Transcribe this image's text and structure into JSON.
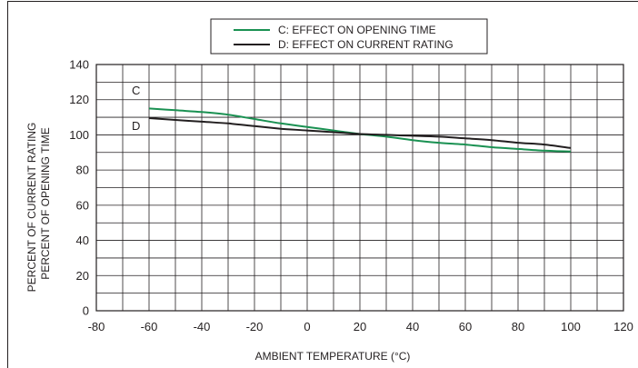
{
  "chart_data": {
    "type": "line",
    "xlabel": "AMBIENT TEMPERATURE (°C)",
    "ylabel_lines": [
      "PERCENT OF CURRENT RATING",
      "PERCENT OF OPENING TIME"
    ],
    "xlim": [
      -80,
      120
    ],
    "ylim": [
      0,
      140
    ],
    "x_ticks": [
      -80,
      -60,
      -40,
      -20,
      0,
      20,
      40,
      60,
      80,
      100,
      120
    ],
    "y_ticks": [
      0,
      20,
      40,
      60,
      80,
      100,
      120,
      140
    ],
    "grid": true,
    "grid_x_step": 10,
    "grid_y_step": 10,
    "legend_placement": "top-center, above plot",
    "series": [
      {
        "name": "C: EFFECT ON OPENING TIME",
        "tag": "C",
        "color": "#1a9152",
        "x": [
          -60,
          -50,
          -40,
          -30,
          -20,
          -10,
          0,
          10,
          20,
          30,
          40,
          50,
          60,
          70,
          80,
          90,
          100
        ],
        "y": [
          115,
          114,
          113,
          111.5,
          109,
          106.5,
          104.5,
          102.5,
          100.5,
          99,
          97,
          95.5,
          94.5,
          93,
          92,
          91,
          90.5
        ]
      },
      {
        "name": "D: EFFECT ON CURRENT RATING",
        "tag": "D",
        "color": "#231f20",
        "x": [
          -60,
          -50,
          -40,
          -30,
          -20,
          -10,
          0,
          10,
          20,
          30,
          40,
          50,
          60,
          70,
          80,
          90,
          100
        ],
        "y": [
          109.5,
          108.5,
          107.5,
          106.5,
          105,
          103.5,
          102.5,
          101.5,
          100.5,
          100,
          99.5,
          99,
          98,
          97,
          95.5,
          94.5,
          92.5
        ]
      }
    ]
  }
}
